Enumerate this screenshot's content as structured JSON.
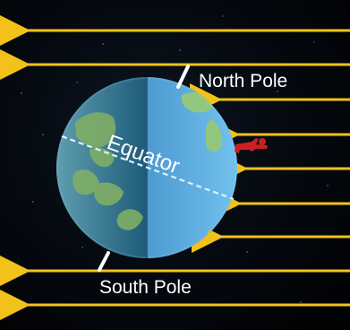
{
  "labels": {
    "north_pole": "North Pole",
    "south_pole": "South Pole",
    "equator": "Equator"
  },
  "colors": {
    "space": "#06080d",
    "ray": "#f2c21b",
    "axis": "#ffffff",
    "equator_line": "#d9f2ff",
    "night_side": "#2f6d8f",
    "day_side": "#5aa9d9",
    "land_day": "#95c878",
    "land_night": "#7fae67",
    "person": "#c92024"
  },
  "icons": {
    "sun_ray": "left-arrow",
    "person": "human-figure-icon"
  }
}
